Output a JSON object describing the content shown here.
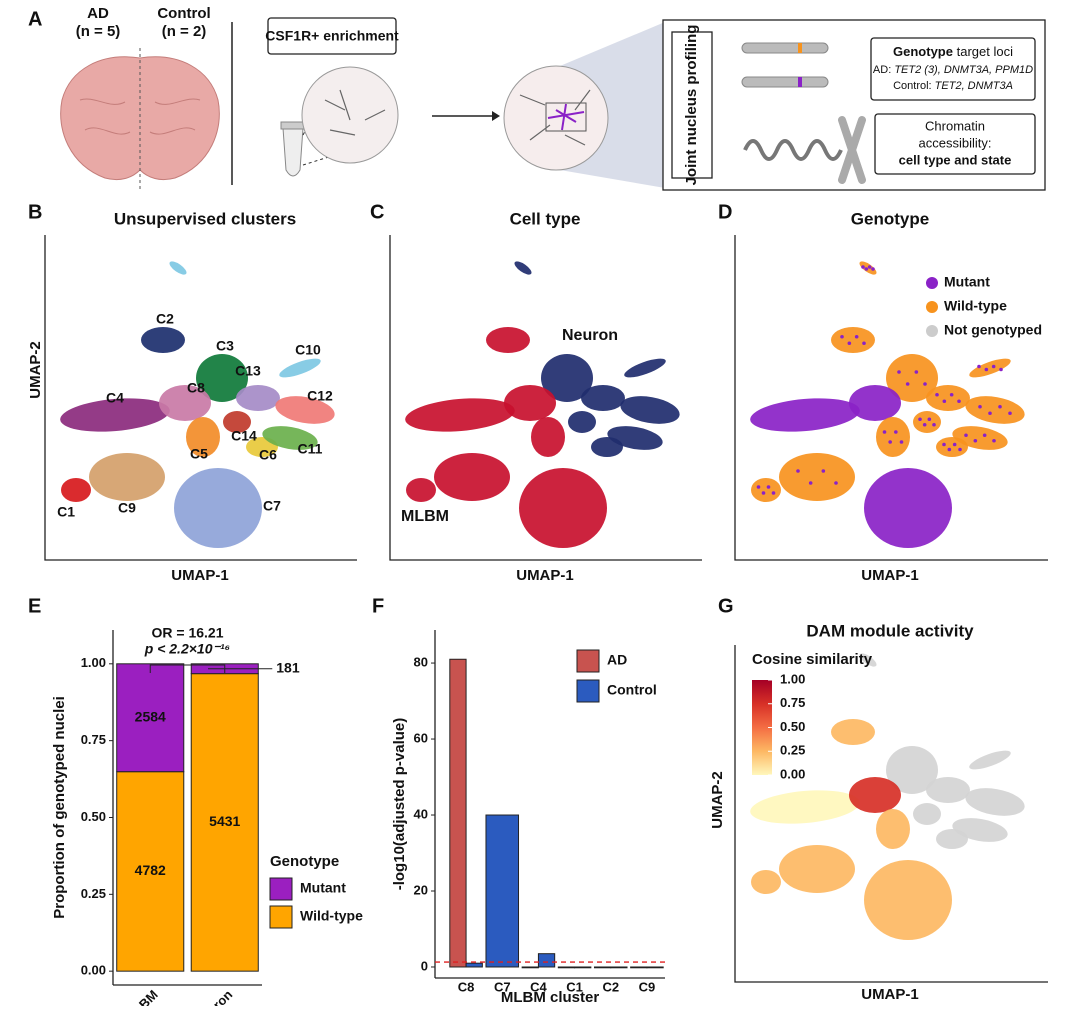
{
  "panel_a": {
    "letter": "A",
    "ad": "AD",
    "ad_n": "(n = 5)",
    "control": "Control",
    "control_n": "(n = 2)",
    "enrichment": "CSF1R+ enrichment",
    "profiling": "Joint nucleus profiling",
    "genotype_bold": "Genotype",
    "genotype_rest": " target loci",
    "ad_prefix": "AD: ",
    "ad_loci": "TET2 (3), DNMT3A, PPM1D",
    "control_prefix": "Control: ",
    "control_loci": "TET2, DNMT3A",
    "chromatin": "Chromatin",
    "accessibility": "accessibility:",
    "cell_state": "cell type and state"
  },
  "panel_b": {
    "letter": "B",
    "title": "Unsupervised clusters",
    "x_label": "UMAP-1",
    "y_label": "UMAP-2",
    "clusters": [
      {
        "label": "C1",
        "color": "#d7191c"
      },
      {
        "label": "C2",
        "color": "#1c2f6e"
      },
      {
        "label": "C3",
        "color": "#0f7a3a"
      },
      {
        "label": "C4",
        "color": "#8b2a7d"
      },
      {
        "label": "C5",
        "color": "#f28c28"
      },
      {
        "label": "C6",
        "color": "#e8c93a"
      },
      {
        "label": "C7",
        "color": "#8ea3d8"
      },
      {
        "label": "C8",
        "color": "#c97aa6"
      },
      {
        "label": "C9",
        "color": "#d4a06a"
      },
      {
        "label": "C10",
        "color": "#7ec8e3"
      },
      {
        "label": "C11",
        "color": "#6ab04c"
      },
      {
        "label": "C12",
        "color": "#f07a76"
      },
      {
        "label": "C13",
        "color": "#a58bc7"
      },
      {
        "label": "C14",
        "color": "#c0392b"
      }
    ]
  },
  "panel_c": {
    "letter": "C",
    "title": "Cell type",
    "x_label": "UMAP-1",
    "groups": [
      {
        "label": "Neuron",
        "color": "#1f2d6e"
      },
      {
        "label": "MLBM",
        "color": "#c8102e"
      }
    ]
  },
  "panel_d": {
    "letter": "D",
    "title": "Genotype",
    "x_label": "UMAP-1",
    "legend": [
      {
        "label": "Mutant",
        "color": "#8a22c7"
      },
      {
        "label": "Wild-type",
        "color": "#f7931e"
      },
      {
        "label": "Not genotyped",
        "color": "#cccccc"
      }
    ]
  },
  "panel_g": {
    "letter": "G",
    "title": "DAM module activity",
    "x_label": "UMAP-1",
    "y_label": "UMAP-2",
    "colorbar_title": "Cosine similarity",
    "colorbar_lim": [
      0,
      1
    ],
    "colorbar_ticks": [
      {
        "value": 1,
        "label": "1.00"
      },
      {
        "value": 0.75,
        "label": "0.75"
      },
      {
        "value": 0.5,
        "label": "0.50"
      },
      {
        "value": 0.25,
        "label": "0.25"
      },
      {
        "value": 0,
        "label": "0.00"
      }
    ],
    "colorbar_colors": [
      "#fff7bc",
      "#fdb863",
      "#f46d43",
      "#d73027",
      "#a50026"
    ]
  },
  "chart_data": [
    {
      "type": "stacked_bar",
      "panel": "E",
      "annotation": "OR = 16.21",
      "p_value": "p < 2.2×10⁻¹⁶",
      "y_label": "Proportion of genotyped nuclei",
      "legend_title": "Genotype",
      "categories": [
        "MLBM",
        "Neuron"
      ],
      "series": [
        {
          "name": "Mutant",
          "color": "#9b1fc0",
          "values": [
            0.351,
            0.032
          ],
          "counts": [
            2584,
            181
          ]
        },
        {
          "name": "Wild-type",
          "color": "#ffa500",
          "values": [
            0.649,
            0.968
          ],
          "counts": [
            4782,
            5431
          ]
        }
      ],
      "ylim": [
        -0.045,
        1.11
      ],
      "yticks": [
        {
          "value": 0,
          "label": "0.00"
        },
        {
          "value": 0.25,
          "label": "0.25"
        },
        {
          "value": 0.5,
          "label": "0.50"
        },
        {
          "value": 0.75,
          "label": "0.75"
        },
        {
          "value": 1,
          "label": "1.00"
        }
      ]
    },
    {
      "type": "bar",
      "panel": "F",
      "y_label": "-log10(adjusted p-value)",
      "x_label": "MLBM cluster",
      "categories": [
        "C8",
        "C7",
        "C4",
        "C1",
        "C2",
        "C9"
      ],
      "series": [
        {
          "name": "AD",
          "color": "#c8534f",
          "values": [
            81,
            null,
            0,
            0,
            0,
            0
          ]
        },
        {
          "name": "Control",
          "color": "#2b5bbf",
          "values": [
            1,
            40,
            3.5,
            0,
            0,
            0
          ]
        }
      ],
      "threshold": 1.3,
      "threshold_color": "#e02020",
      "ylim": [
        -2.9,
        88.7
      ],
      "yticks": [
        0,
        20,
        40,
        60,
        80
      ]
    }
  ]
}
